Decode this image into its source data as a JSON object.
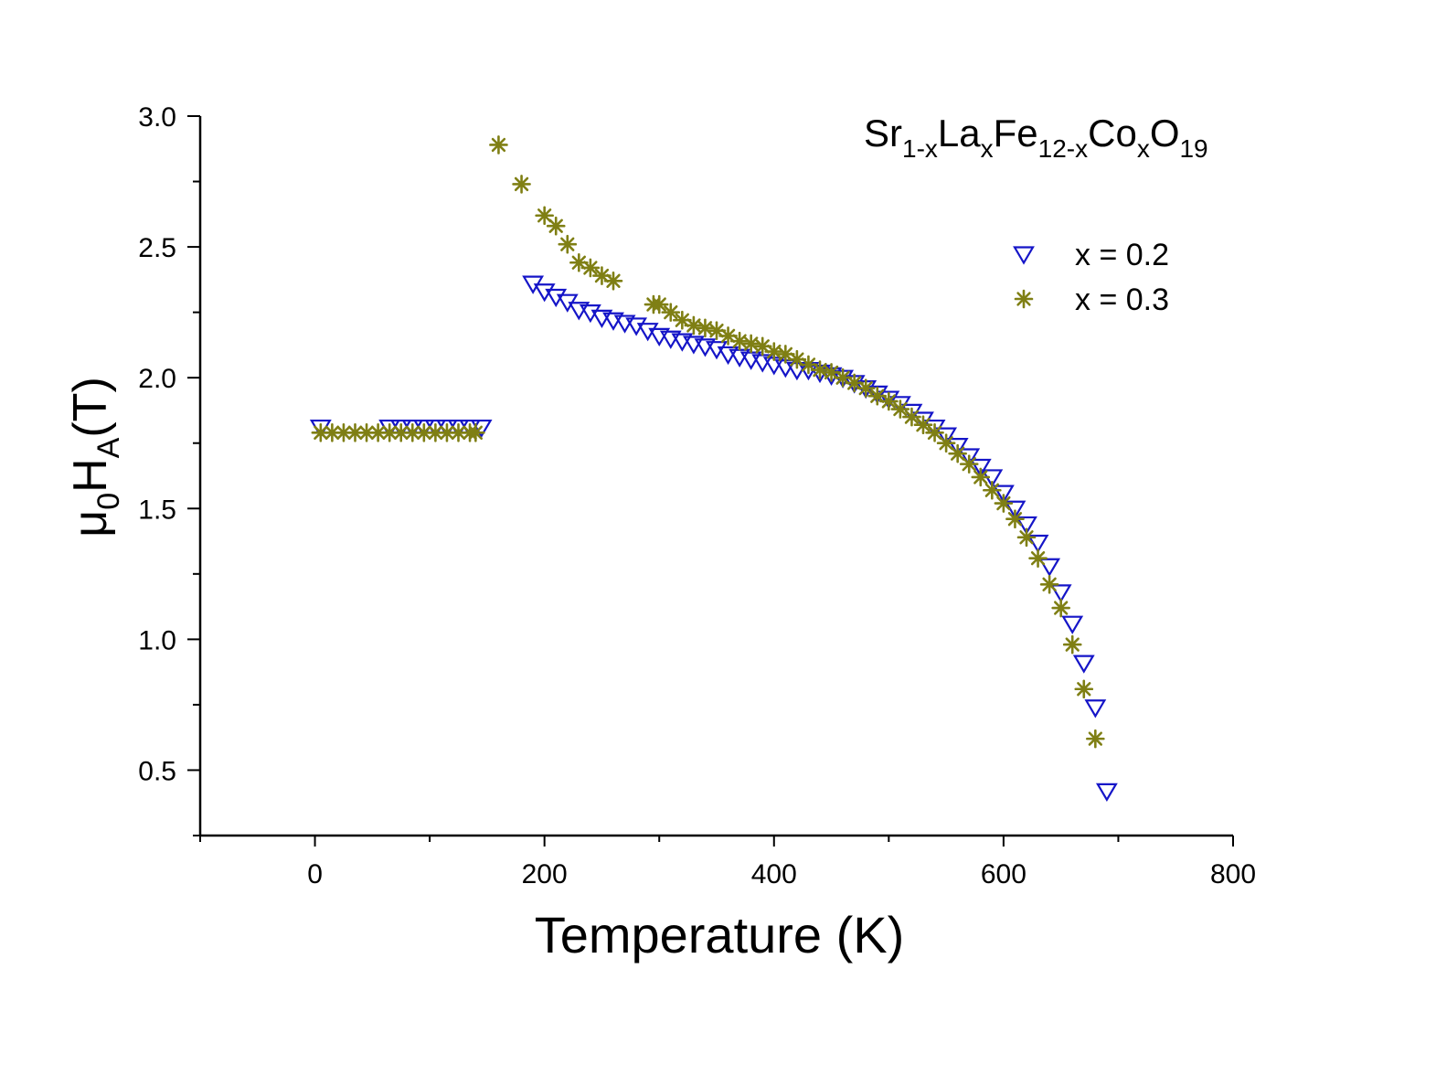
{
  "chart_data": {
    "type": "scatter",
    "title": "",
    "formula": {
      "parts": [
        {
          "text": "Sr",
          "sub": false
        },
        {
          "text": "1-x",
          "sub": true
        },
        {
          "text": "La",
          "sub": false
        },
        {
          "text": "x",
          "sub": true
        },
        {
          "text": "Fe",
          "sub": false
        },
        {
          "text": "12-x",
          "sub": true
        },
        {
          "text": "Co",
          "sub": false
        },
        {
          "text": "x",
          "sub": true
        },
        {
          "text": "O",
          "sub": false
        },
        {
          "text": "19",
          "sub": true
        }
      ]
    },
    "xlabel": "Temperature (K)",
    "ylabel": {
      "main": "μ",
      "sub1": "0",
      "mid": "H",
      "sub2": "A",
      "end": "(T)"
    },
    "xlim": [
      -100,
      800
    ],
    "ylim": [
      0.25,
      3.0
    ],
    "x_ticks": [
      0,
      200,
      400,
      600,
      800
    ],
    "y_ticks": [
      0.5,
      1.0,
      1.5,
      2.0,
      2.5,
      3.0
    ],
    "x_tick_labels": [
      "0",
      "200",
      "400",
      "600",
      "800"
    ],
    "y_tick_labels": [
      "0.5",
      "1.0",
      "1.5",
      "2.0",
      "2.5",
      "3.0"
    ],
    "legend_position": "top-right",
    "series": [
      {
        "name": "x = 0.2",
        "marker": "triangle-down-open",
        "color": "#1515c8",
        "points": [
          [
            5,
            1.81
          ],
          [
            65,
            1.81
          ],
          [
            75,
            1.81
          ],
          [
            85,
            1.81
          ],
          [
            95,
            1.81
          ],
          [
            105,
            1.81
          ],
          [
            115,
            1.81
          ],
          [
            125,
            1.81
          ],
          [
            135,
            1.81
          ],
          [
            145,
            1.81
          ],
          [
            190,
            2.36
          ],
          [
            200,
            2.33
          ],
          [
            210,
            2.31
          ],
          [
            220,
            2.29
          ],
          [
            230,
            2.26
          ],
          [
            240,
            2.25
          ],
          [
            250,
            2.23
          ],
          [
            260,
            2.22
          ],
          [
            270,
            2.21
          ],
          [
            280,
            2.2
          ],
          [
            290,
            2.18
          ],
          [
            300,
            2.16
          ],
          [
            310,
            2.15
          ],
          [
            320,
            2.14
          ],
          [
            330,
            2.13
          ],
          [
            340,
            2.12
          ],
          [
            350,
            2.11
          ],
          [
            360,
            2.09
          ],
          [
            370,
            2.08
          ],
          [
            380,
            2.07
          ],
          [
            390,
            2.06
          ],
          [
            400,
            2.05
          ],
          [
            410,
            2.04
          ],
          [
            420,
            2.03
          ],
          [
            430,
            2.03
          ],
          [
            440,
            2.02
          ],
          [
            450,
            2.01
          ],
          [
            460,
            2.0
          ],
          [
            470,
            1.98
          ],
          [
            480,
            1.96
          ],
          [
            490,
            1.94
          ],
          [
            500,
            1.92
          ],
          [
            510,
            1.9
          ],
          [
            520,
            1.87
          ],
          [
            530,
            1.84
          ],
          [
            540,
            1.81
          ],
          [
            550,
            1.78
          ],
          [
            560,
            1.74
          ],
          [
            570,
            1.7
          ],
          [
            580,
            1.66
          ],
          [
            590,
            1.62
          ],
          [
            600,
            1.56
          ],
          [
            610,
            1.5
          ],
          [
            620,
            1.44
          ],
          [
            630,
            1.37
          ],
          [
            640,
            1.28
          ],
          [
            650,
            1.18
          ],
          [
            660,
            1.06
          ],
          [
            670,
            0.91
          ],
          [
            680,
            0.74
          ],
          [
            690,
            0.42
          ]
        ]
      },
      {
        "name": "x = 0.3",
        "marker": "asterisk",
        "color": "#7f7f14",
        "points": [
          [
            5,
            1.79
          ],
          [
            15,
            1.79
          ],
          [
            25,
            1.79
          ],
          [
            35,
            1.79
          ],
          [
            45,
            1.79
          ],
          [
            55,
            1.79
          ],
          [
            65,
            1.79
          ],
          [
            75,
            1.79
          ],
          [
            85,
            1.79
          ],
          [
            95,
            1.79
          ],
          [
            105,
            1.79
          ],
          [
            115,
            1.79
          ],
          [
            125,
            1.79
          ],
          [
            135,
            1.79
          ],
          [
            140,
            1.79
          ],
          [
            160,
            2.89
          ],
          [
            180,
            2.74
          ],
          [
            200,
            2.62
          ],
          [
            210,
            2.58
          ],
          [
            220,
            2.51
          ],
          [
            230,
            2.44
          ],
          [
            240,
            2.42
          ],
          [
            250,
            2.39
          ],
          [
            260,
            2.37
          ],
          [
            295,
            2.28
          ],
          [
            300,
            2.28
          ],
          [
            310,
            2.25
          ],
          [
            320,
            2.22
          ],
          [
            330,
            2.2
          ],
          [
            340,
            2.19
          ],
          [
            350,
            2.18
          ],
          [
            360,
            2.16
          ],
          [
            370,
            2.14
          ],
          [
            380,
            2.13
          ],
          [
            390,
            2.12
          ],
          [
            400,
            2.1
          ],
          [
            410,
            2.09
          ],
          [
            420,
            2.07
          ],
          [
            430,
            2.05
          ],
          [
            440,
            2.03
          ],
          [
            450,
            2.02
          ],
          [
            460,
            2.0
          ],
          [
            470,
            1.98
          ],
          [
            480,
            1.96
          ],
          [
            490,
            1.93
          ],
          [
            500,
            1.91
          ],
          [
            510,
            1.88
          ],
          [
            520,
            1.85
          ],
          [
            530,
            1.82
          ],
          [
            540,
            1.79
          ],
          [
            550,
            1.75
          ],
          [
            560,
            1.71
          ],
          [
            570,
            1.67
          ],
          [
            580,
            1.62
          ],
          [
            590,
            1.57
          ],
          [
            600,
            1.52
          ],
          [
            610,
            1.46
          ],
          [
            620,
            1.39
          ],
          [
            630,
            1.31
          ],
          [
            640,
            1.21
          ],
          [
            650,
            1.12
          ],
          [
            660,
            0.98
          ],
          [
            670,
            0.81
          ],
          [
            680,
            0.62
          ]
        ]
      }
    ]
  }
}
